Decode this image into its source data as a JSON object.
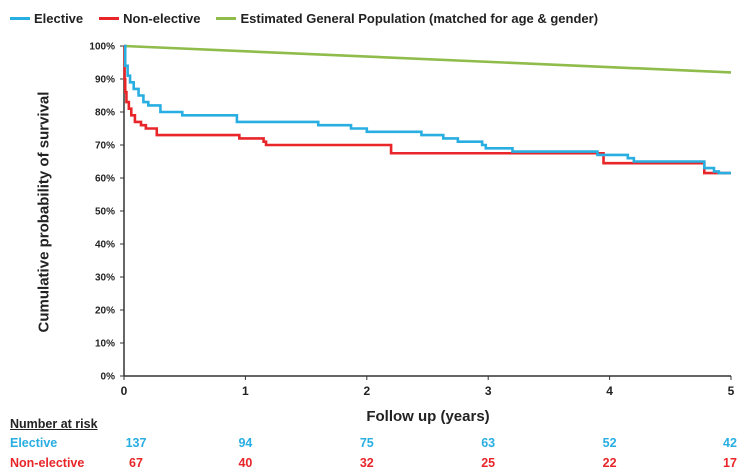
{
  "chart_data": {
    "type": "line",
    "title": "",
    "xlabel": "Follow up (years)",
    "ylabel": "Cumulative probability of survival",
    "xlim": [
      0,
      5
    ],
    "ylim": [
      0,
      100
    ],
    "x_ticks": [
      "0",
      "1",
      "2",
      "3",
      "4",
      "5"
    ],
    "y_ticks": [
      "0%",
      "10%",
      "20%",
      "30%",
      "40%",
      "50%",
      "60%",
      "70%",
      "80%",
      "90%",
      "100%"
    ],
    "grid": false,
    "legend_position": "top",
    "series": [
      {
        "name": "Elective",
        "color": "#29aee2",
        "step": true,
        "points": [
          [
            0,
            100
          ],
          [
            0.01,
            94
          ],
          [
            0.03,
            91
          ],
          [
            0.05,
            89
          ],
          [
            0.08,
            87
          ],
          [
            0.12,
            85
          ],
          [
            0.16,
            83
          ],
          [
            0.2,
            82
          ],
          [
            0.3,
            80
          ],
          [
            0.48,
            79
          ],
          [
            0.93,
            77
          ],
          [
            1.35,
            77
          ],
          [
            1.6,
            76
          ],
          [
            1.87,
            75
          ],
          [
            2.0,
            74
          ],
          [
            2.3,
            74
          ],
          [
            2.45,
            73
          ],
          [
            2.63,
            72
          ],
          [
            2.75,
            71
          ],
          [
            2.95,
            70
          ],
          [
            2.98,
            69
          ],
          [
            3.2,
            68
          ],
          [
            3.75,
            68
          ],
          [
            3.9,
            67
          ],
          [
            4.1,
            67
          ],
          [
            4.15,
            66
          ],
          [
            4.2,
            65
          ],
          [
            4.5,
            65
          ],
          [
            4.78,
            63
          ],
          [
            4.86,
            62
          ],
          [
            4.9,
            61.5
          ],
          [
            5.0,
            61.5
          ]
        ]
      },
      {
        "name": "Non-elective",
        "color": "#e8262a",
        "step": true,
        "points": [
          [
            0,
            100
          ],
          [
            0.005,
            90
          ],
          [
            0.01,
            86
          ],
          [
            0.02,
            83
          ],
          [
            0.04,
            81
          ],
          [
            0.06,
            79
          ],
          [
            0.09,
            77
          ],
          [
            0.14,
            76
          ],
          [
            0.18,
            75
          ],
          [
            0.27,
            73
          ],
          [
            0.93,
            73
          ],
          [
            0.95,
            72
          ],
          [
            1.15,
            71
          ],
          [
            1.17,
            70
          ],
          [
            2.17,
            70
          ],
          [
            2.2,
            67.5
          ],
          [
            3.5,
            67.5
          ],
          [
            3.9,
            67.5
          ],
          [
            3.95,
            64.5
          ],
          [
            4.75,
            64.5
          ],
          [
            4.78,
            61.5
          ],
          [
            5.0,
            61.5
          ]
        ]
      },
      {
        "name": "Estimated General Population (matched for age & gender)",
        "color": "#8fbc4b",
        "step": false,
        "points": [
          [
            0,
            100
          ],
          [
            5,
            92
          ]
        ]
      }
    ],
    "number_at_risk": {
      "title": "Number at risk",
      "x": [
        0,
        1,
        2,
        3,
        4,
        5
      ],
      "rows": [
        {
          "label": "Elective",
          "color": "#29aee2",
          "values": [
            "137",
            "94",
            "75",
            "63",
            "52",
            "42"
          ]
        },
        {
          "label": "Non-elective",
          "color": "#e8262a",
          "values": [
            "67",
            "40",
            "32",
            "25",
            "22",
            "17"
          ]
        }
      ]
    }
  }
}
